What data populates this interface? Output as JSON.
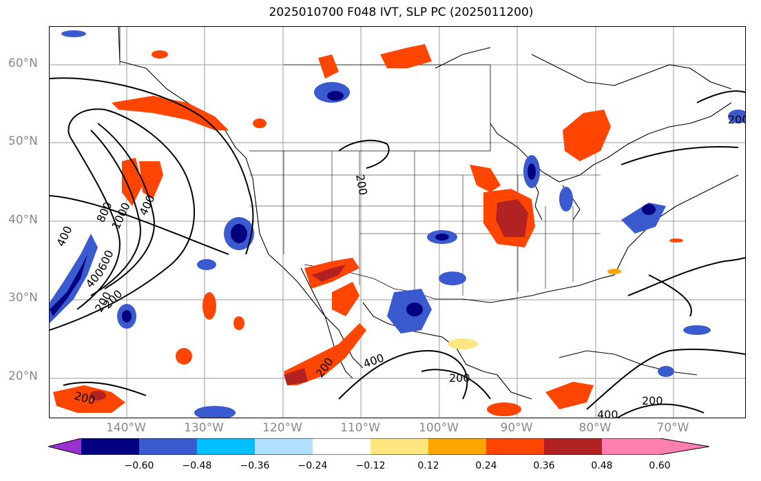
{
  "title": "2025010700 F048 IVT, SLP PC (2025011200)",
  "lat_labels": [
    "60°N",
    "50°N",
    "40°N",
    "30°N",
    "20°N"
  ],
  "lon_labels": [
    "140°W",
    "130°W",
    "120°W",
    "110°W",
    "100°W",
    "90°W",
    "80°W",
    "70°W"
  ],
  "colorbar": {
    "colors": [
      "#9b30d0",
      "#000080",
      "#3a5ad0",
      "#00bfff",
      "#b0e0ff",
      "#ffffff",
      "#ffe680",
      "#ffa500",
      "#ff4500",
      "#b22222",
      "#ff80b0"
    ],
    "ticks": [
      "−0.60",
      "−0.48",
      "−0.36",
      "−0.24",
      "−0.12",
      "0.12",
      "0.24",
      "0.36",
      "0.48",
      "0.60"
    ]
  },
  "contour_labels": [
    "200",
    "200",
    "200",
    "200",
    "200",
    "200",
    "200",
    "400",
    "400",
    "400",
    "400",
    "600",
    "800",
    "1000",
    "200",
    "400"
  ]
}
